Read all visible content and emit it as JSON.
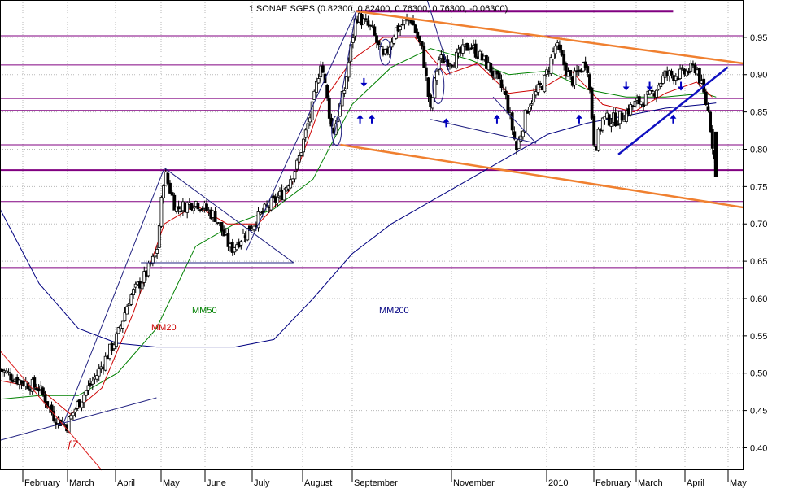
{
  "chart_data": {
    "type": "candlestick",
    "title": "1 SONAE SGPS (0.82300, 0.82400, 0.76300, 0.76300, -0.06300)",
    "ylim": [
      0.37,
      1.0
    ],
    "y_ticks": [
      0.4,
      0.45,
      0.5,
      0.55,
      0.6,
      0.65,
      0.7,
      0.75,
      0.8,
      0.85,
      0.9,
      0.95
    ],
    "x_months": [
      "February",
      "March",
      "April",
      "May",
      "June",
      "July",
      "August",
      "September",
      "November",
      "2010",
      "February",
      "March",
      "April",
      "May"
    ],
    "grid": true,
    "series": [
      {
        "name": "MM20",
        "color": "#cc0000"
      },
      {
        "name": "MM50",
        "color": "#008000"
      },
      {
        "name": "MM200",
        "color": "#000080"
      }
    ],
    "horizontal_levels": {
      "thick": [
        0.772,
        0.641,
        0.985
      ],
      "thin": [
        0.952,
        0.913,
        0.868,
        0.852,
        0.806,
        0.73
      ]
    },
    "annotations": [
      "MM20",
      "MM50",
      "MM200"
    ],
    "price_path": [
      {
        "x": 0.0,
        "y": 0.505
      },
      {
        "x": 0.5,
        "y": 0.49
      },
      {
        "x": 1.0,
        "y": 0.48
      },
      {
        "x": 1.4,
        "y": 0.44
      },
      {
        "x": 1.7,
        "y": 0.43
      },
      {
        "x": 2.0,
        "y": 0.46
      },
      {
        "x": 2.5,
        "y": 0.5
      },
      {
        "x": 3.0,
        "y": 0.55
      },
      {
        "x": 3.3,
        "y": 0.6
      },
      {
        "x": 3.7,
        "y": 0.63
      },
      {
        "x": 4.0,
        "y": 0.66
      },
      {
        "x": 4.2,
        "y": 0.77
      },
      {
        "x": 4.5,
        "y": 0.72
      },
      {
        "x": 5.0,
        "y": 0.73
      },
      {
        "x": 5.5,
        "y": 0.71
      },
      {
        "x": 5.9,
        "y": 0.665
      },
      {
        "x": 6.3,
        "y": 0.69
      },
      {
        "x": 6.8,
        "y": 0.72
      },
      {
        "x": 7.2,
        "y": 0.74
      },
      {
        "x": 7.6,
        "y": 0.78
      },
      {
        "x": 8.0,
        "y": 0.86
      },
      {
        "x": 8.2,
        "y": 0.92
      },
      {
        "x": 8.5,
        "y": 0.82
      },
      {
        "x": 8.8,
        "y": 0.88
      },
      {
        "x": 9.1,
        "y": 0.98
      },
      {
        "x": 9.5,
        "y": 0.96
      },
      {
        "x": 9.8,
        "y": 0.92
      },
      {
        "x": 10.1,
        "y": 0.96
      },
      {
        "x": 10.5,
        "y": 0.975
      },
      {
        "x": 10.8,
        "y": 0.93
      },
      {
        "x": 11.0,
        "y": 0.85
      },
      {
        "x": 11.2,
        "y": 0.92
      },
      {
        "x": 11.6,
        "y": 0.92
      },
      {
        "x": 12.0,
        "y": 0.94
      },
      {
        "x": 12.5,
        "y": 0.91
      },
      {
        "x": 12.9,
        "y": 0.875
      },
      {
        "x": 13.2,
        "y": 0.8
      },
      {
        "x": 13.5,
        "y": 0.86
      },
      {
        "x": 13.9,
        "y": 0.89
      },
      {
        "x": 14.2,
        "y": 0.94
      },
      {
        "x": 14.6,
        "y": 0.89
      },
      {
        "x": 15.0,
        "y": 0.92
      },
      {
        "x": 15.2,
        "y": 0.8
      },
      {
        "x": 15.4,
        "y": 0.84
      },
      {
        "x": 15.8,
        "y": 0.84
      },
      {
        "x": 16.2,
        "y": 0.86
      },
      {
        "x": 16.6,
        "y": 0.87
      },
      {
        "x": 17.0,
        "y": 0.9
      },
      {
        "x": 17.4,
        "y": 0.9
      },
      {
        "x": 17.8,
        "y": 0.91
      },
      {
        "x": 18.1,
        "y": 0.85
      },
      {
        "x": 18.3,
        "y": 0.77
      }
    ],
    "mm20_path": [
      {
        "x": 0.0,
        "y": 0.49
      },
      {
        "x": 1.0,
        "y": 0.48
      },
      {
        "x": 1.8,
        "y": 0.445
      },
      {
        "x": 2.6,
        "y": 0.48
      },
      {
        "x": 3.4,
        "y": 0.58
      },
      {
        "x": 4.2,
        "y": 0.7
      },
      {
        "x": 5.0,
        "y": 0.725
      },
      {
        "x": 5.8,
        "y": 0.7
      },
      {
        "x": 6.6,
        "y": 0.7
      },
      {
        "x": 7.4,
        "y": 0.745
      },
      {
        "x": 8.2,
        "y": 0.86
      },
      {
        "x": 9.0,
        "y": 0.92
      },
      {
        "x": 9.8,
        "y": 0.95
      },
      {
        "x": 10.6,
        "y": 0.95
      },
      {
        "x": 11.4,
        "y": 0.9
      },
      {
        "x": 12.2,
        "y": 0.915
      },
      {
        "x": 13.0,
        "y": 0.875
      },
      {
        "x": 13.8,
        "y": 0.88
      },
      {
        "x": 14.6,
        "y": 0.905
      },
      {
        "x": 15.4,
        "y": 0.86
      },
      {
        "x": 16.2,
        "y": 0.85
      },
      {
        "x": 17.0,
        "y": 0.875
      },
      {
        "x": 17.8,
        "y": 0.89
      },
      {
        "x": 18.2,
        "y": 0.87
      }
    ],
    "mm50_path": [
      {
        "x": 0.0,
        "y": 0.465
      },
      {
        "x": 1.0,
        "y": 0.47
      },
      {
        "x": 2.0,
        "y": 0.47
      },
      {
        "x": 3.0,
        "y": 0.5
      },
      {
        "x": 4.0,
        "y": 0.56
      },
      {
        "x": 5.0,
        "y": 0.67
      },
      {
        "x": 6.0,
        "y": 0.7
      },
      {
        "x": 7.0,
        "y": 0.72
      },
      {
        "x": 8.0,
        "y": 0.76
      },
      {
        "x": 9.0,
        "y": 0.86
      },
      {
        "x": 10.0,
        "y": 0.91
      },
      {
        "x": 11.0,
        "y": 0.935
      },
      {
        "x": 12.0,
        "y": 0.92
      },
      {
        "x": 13.0,
        "y": 0.9
      },
      {
        "x": 14.0,
        "y": 0.905
      },
      {
        "x": 15.0,
        "y": 0.88
      },
      {
        "x": 16.0,
        "y": 0.87
      },
      {
        "x": 17.0,
        "y": 0.87
      },
      {
        "x": 18.0,
        "y": 0.875
      },
      {
        "x": 18.3,
        "y": 0.87
      }
    ],
    "mm200_path": [
      {
        "x": 0.0,
        "y": 0.72
      },
      {
        "x": 1.0,
        "y": 0.62
      },
      {
        "x": 2.0,
        "y": 0.56
      },
      {
        "x": 3.0,
        "y": 0.54
      },
      {
        "x": 4.0,
        "y": 0.535
      },
      {
        "x": 5.0,
        "y": 0.535
      },
      {
        "x": 6.0,
        "y": 0.535
      },
      {
        "x": 7.0,
        "y": 0.545
      },
      {
        "x": 8.0,
        "y": 0.6
      },
      {
        "x": 9.0,
        "y": 0.66
      },
      {
        "x": 10.0,
        "y": 0.7
      },
      {
        "x": 11.0,
        "y": 0.73
      },
      {
        "x": 12.0,
        "y": 0.76
      },
      {
        "x": 13.0,
        "y": 0.79
      },
      {
        "x": 14.0,
        "y": 0.82
      },
      {
        "x": 15.0,
        "y": 0.835
      },
      {
        "x": 16.0,
        "y": 0.845
      },
      {
        "x": 17.0,
        "y": 0.855
      },
      {
        "x": 18.0,
        "y": 0.86
      },
      {
        "x": 18.3,
        "y": 0.862
      }
    ],
    "trend_lines": {
      "orange": [
        {
          "x1": 9.1,
          "y1": 0.985,
          "x2": 19.0,
          "y2": 0.915
        },
        {
          "x1": 8.7,
          "y1": 0.806,
          "x2": 19.0,
          "y2": 0.722
        }
      ],
      "blue_thin": [
        {
          "x1": 0.0,
          "y1": 0.41,
          "x2": 4.0,
          "y2": 0.467
        },
        {
          "x1": 1.6,
          "y1": 0.43,
          "x2": 4.2,
          "y2": 0.775
        },
        {
          "x1": 8.5,
          "y1": 0.805,
          "x2": 9.1,
          "y2": 0.985
        },
        {
          "x1": 6.3,
          "y1": 0.665,
          "x2": 9.1,
          "y2": 0.985
        },
        {
          "x1": 4.2,
          "y1": 0.775,
          "x2": 7.5,
          "y2": 0.648
        },
        {
          "x1": 3.6,
          "y1": 0.648,
          "x2": 7.5,
          "y2": 0.648
        },
        {
          "x1": 10.8,
          "y1": 1.02,
          "x2": 11.5,
          "y2": 0.9
        },
        {
          "x1": 11.0,
          "y1": 0.84,
          "x2": 13.7,
          "y2": 0.808
        },
        {
          "x1": 12.6,
          "y1": 0.87,
          "x2": 13.7,
          "y2": 0.808
        }
      ],
      "blue_thick": [
        {
          "x1": 15.8,
          "y1": 0.793,
          "x2": 18.6,
          "y2": 0.91
        }
      ],
      "red_thin": [
        {
          "x1": 0.0,
          "y1": 0.53,
          "x2": 2.6,
          "y2": 0.37
        }
      ]
    },
    "arrows_down": [
      {
        "x": 9.3,
        "y": 0.89
      },
      {
        "x": 16.0,
        "y": 0.885
      },
      {
        "x": 16.6,
        "y": 0.885
      },
      {
        "x": 17.4,
        "y": 0.885
      }
    ],
    "arrows_up": [
      {
        "x": 9.5,
        "y": 0.84
      },
      {
        "x": 11.4,
        "y": 0.835
      },
      {
        "x": 12.7,
        "y": 0.84
      },
      {
        "x": 14.8,
        "y": 0.84
      },
      {
        "x": 17.2,
        "y": 0.84
      },
      {
        "x": 9.2,
        "y": 0.84
      }
    ]
  }
}
